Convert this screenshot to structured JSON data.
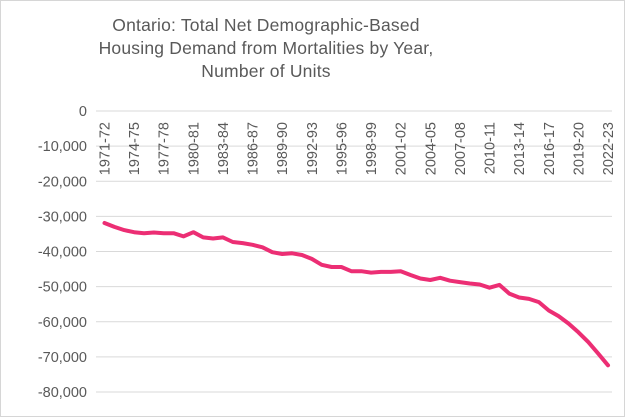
{
  "chart_data": {
    "type": "line",
    "title": "Ontario: Total Net Demographic-Based Housing Demand from Mortalities by Year, Number of Units",
    "title_lines": [
      "Ontario: Total Net Demographic-Based",
      "Housing Demand from Mortalities by Year,",
      "Number of Units"
    ],
    "xlabel": "",
    "ylabel": "",
    "legend": "none",
    "grid": "horizontal",
    "ylim": [
      -80000,
      0
    ],
    "y_ticks": [
      0,
      -10000,
      -20000,
      -30000,
      -40000,
      -50000,
      -60000,
      -70000,
      -80000
    ],
    "y_tick_labels": [
      "0",
      "-10,000",
      "-20,000",
      "-30,000",
      "-40,000",
      "-50,000",
      "-60,000",
      "-70,000",
      "-80,000"
    ],
    "x_tick_labels": [
      "1971-72",
      "1974-75",
      "1977-78",
      "1980-81",
      "1983-84",
      "1986-87",
      "1989-90",
      "1992-93",
      "1995-96",
      "1998-99",
      "2001-02",
      "2004-05",
      "2007-08",
      "2010-11",
      "2013-14",
      "2016-17",
      "2019-20",
      "2022-23"
    ],
    "categories": [
      "1971-72",
      "1972-73",
      "1973-74",
      "1974-75",
      "1975-76",
      "1976-77",
      "1977-78",
      "1978-79",
      "1979-80",
      "1980-81",
      "1981-82",
      "1982-83",
      "1983-84",
      "1984-85",
      "1985-86",
      "1986-87",
      "1987-88",
      "1988-89",
      "1989-90",
      "1990-91",
      "1991-92",
      "1992-93",
      "1993-94",
      "1994-95",
      "1995-96",
      "1996-97",
      "1997-98",
      "1998-99",
      "1999-00",
      "2000-01",
      "2001-02",
      "2002-03",
      "2003-04",
      "2004-05",
      "2005-06",
      "2006-07",
      "2007-08",
      "2008-09",
      "2009-10",
      "2010-11",
      "2011-12",
      "2012-13",
      "2013-14",
      "2014-15",
      "2015-16",
      "2016-17",
      "2017-18",
      "2018-19",
      "2019-20",
      "2020-21",
      "2021-22",
      "2022-23"
    ],
    "values": [
      -31900,
      -33000,
      -33900,
      -34500,
      -34800,
      -34600,
      -34800,
      -34800,
      -35700,
      -34500,
      -36000,
      -36300,
      -36000,
      -37300,
      -37600,
      -38100,
      -38800,
      -40200,
      -40700,
      -40500,
      -41000,
      -42100,
      -43800,
      -44400,
      -44400,
      -45600,
      -45600,
      -46000,
      -45800,
      -45800,
      -45600,
      -46700,
      -47700,
      -48100,
      -47500,
      -48300,
      -48700,
      -49100,
      -49400,
      -50300,
      -49500,
      -52000,
      -53100,
      -53500,
      -54400,
      -56800,
      -58400,
      -60500,
      -63000,
      -65800,
      -69000,
      -72400
    ],
    "line_color": "#EC2E74",
    "text_color": "#595959",
    "gridline_color": "#D9D9D9"
  }
}
